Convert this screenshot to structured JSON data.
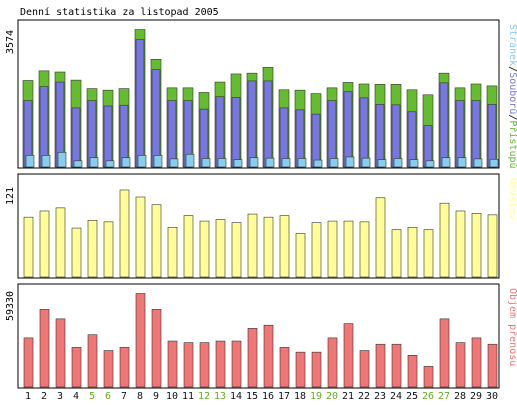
{
  "chart_data": [
    {
      "type": "bar",
      "title": "Denní statistika za listopad 2005",
      "categories": [
        "1",
        "2",
        "3",
        "4",
        "5",
        "6",
        "7",
        "8",
        "9",
        "10",
        "11",
        "12",
        "13",
        "14",
        "15",
        "16",
        "17",
        "18",
        "19",
        "20",
        "21",
        "22",
        "23",
        "24",
        "25",
        "26",
        "27",
        "28",
        "29",
        "30"
      ],
      "weekend_days": [
        "5",
        "6",
        "12",
        "13",
        "19",
        "20",
        "26",
        "27"
      ],
      "ylabel_max": "3574",
      "ylim": [
        0,
        3574
      ],
      "legend": {
        "parts": [
          "Přístupů",
          "Souborů",
          "Stránek"
        ],
        "separator": "/"
      },
      "series": [
        {
          "name": "Přístupů",
          "color": "#66bb33",
          "values": [
            2240,
            2490,
            2460,
            2250,
            2030,
            1990,
            2030,
            3560,
            2790,
            2050,
            2050,
            1930,
            2200,
            2410,
            2430,
            2580,
            2000,
            1990,
            1900,
            2050,
            2190,
            2150,
            2140,
            2140,
            2000,
            1870,
            2430,
            2050,
            2150,
            2100
          ]
        },
        {
          "name": "Souborů",
          "color": "#7777dd",
          "values": [
            1720,
            2080,
            2200,
            1530,
            1720,
            1580,
            1600,
            3300,
            2520,
            1720,
            1720,
            1500,
            1820,
            1800,
            2230,
            2230,
            1530,
            1480,
            1370,
            1720,
            1950,
            1790,
            1620,
            1610,
            1430,
            1070,
            2180,
            1720,
            1720,
            1620
          ]
        },
        {
          "name": "Stránek",
          "color": "#88ccee",
          "values": [
            300,
            300,
            380,
            160,
            240,
            160,
            240,
            300,
            300,
            210,
            330,
            220,
            220,
            190,
            240,
            230,
            220,
            220,
            180,
            220,
            260,
            230,
            190,
            220,
            190,
            160,
            240,
            240,
            210,
            200
          ]
        }
      ]
    },
    {
      "type": "bar",
      "categories": [
        "1",
        "2",
        "3",
        "4",
        "5",
        "6",
        "7",
        "8",
        "9",
        "10",
        "11",
        "12",
        "13",
        "14",
        "15",
        "16",
        "17",
        "18",
        "19",
        "20",
        "21",
        "22",
        "23",
        "24",
        "25",
        "26",
        "27",
        "28",
        "29",
        "30"
      ],
      "ylabel_max": "121",
      "ylim": [
        0,
        121
      ],
      "legend": {
        "parts": [
          "Návštěv"
        ],
        "separator": ""
      },
      "series": [
        {
          "name": "Návštěv",
          "color": "#ffff99",
          "values": [
            77,
            85,
            89,
            63,
            73,
            71,
            112,
            103,
            93,
            64,
            79,
            72,
            74,
            70,
            81,
            77,
            79,
            56,
            70,
            72,
            72,
            71,
            102,
            61,
            64,
            61,
            95,
            85,
            82,
            80
          ]
        }
      ]
    },
    {
      "type": "bar",
      "categories": [
        "1",
        "2",
        "3",
        "4",
        "5",
        "6",
        "7",
        "8",
        "9",
        "10",
        "11",
        "12",
        "13",
        "14",
        "15",
        "16",
        "17",
        "18",
        "19",
        "20",
        "21",
        "22",
        "23",
        "24",
        "25",
        "26",
        "27",
        "28",
        "29",
        "30"
      ],
      "ylabel_max": "59330",
      "ylim": [
        0,
        59330
      ],
      "legend": {
        "parts": [
          "Objem přenosu"
        ],
        "separator": ""
      },
      "series": [
        {
          "name": "Objem přenosu",
          "color": "#ee7777",
          "values": [
            31000,
            49000,
            43000,
            25000,
            33000,
            23000,
            25000,
            59000,
            49000,
            29000,
            28000,
            28000,
            29000,
            29000,
            37000,
            39000,
            25000,
            22000,
            22000,
            31000,
            40000,
            23000,
            27000,
            27000,
            20000,
            13000,
            43000,
            28000,
            31000,
            27000
          ]
        }
      ]
    }
  ],
  "x_axis_labels": [
    "1",
    "2",
    "3",
    "4",
    "5",
    "6",
    "7",
    "8",
    "9",
    "10",
    "11",
    "12",
    "13",
    "14",
    "15",
    "16",
    "17",
    "18",
    "19",
    "20",
    "21",
    "22",
    "23",
    "24",
    "25",
    "26",
    "27",
    "28",
    "29",
    "30"
  ],
  "colors": {
    "weekday_label": "#111111",
    "weekend_label": "#66aa22",
    "frame": "#000000",
    "separator": "#999999",
    "background": "#ffffff"
  }
}
